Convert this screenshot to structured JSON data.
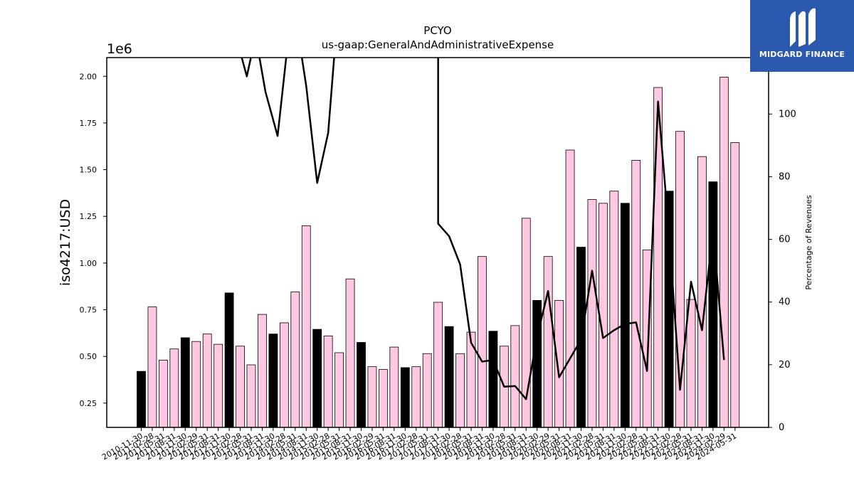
{
  "chart_data": {
    "type": "bar+line",
    "title": "PCYO",
    "subtitle": "us-gaap:GeneralAndAdministrativeExpense",
    "ylabel": "iso4217:USD",
    "ylabel_right": "Percentage of Revenues",
    "y_offset_label": "1e6",
    "ylim": [
      0.12,
      2.1
    ],
    "ylim_right": [
      0,
      118
    ],
    "yticks": [
      0.25,
      0.5,
      0.75,
      1.0,
      1.25,
      1.5,
      1.75,
      2.0
    ],
    "yticks_labels": [
      "0.25",
      "0.50",
      "0.75",
      "1.00",
      "1.25",
      "1.50",
      "1.75",
      "2.00"
    ],
    "yticks_right": [
      0,
      20,
      40,
      60,
      80,
      100
    ],
    "grid": false,
    "categories": [
      "2010-11-30",
      "2011-02-28",
      "2011-05-31",
      "2011-08-31",
      "2011-11-30",
      "2012-02-29",
      "2012-05-31",
      "2012-08-31",
      "2012-11-30",
      "2013-02-28",
      "2013-05-31",
      "2013-08-31",
      "2013-11-30",
      "2014-02-28",
      "2014-05-31",
      "2014-08-31",
      "2014-11-30",
      "2015-02-28",
      "2015-05-31",
      "2015-08-31",
      "2015-11-30",
      "2016-02-29",
      "2016-05-31",
      "2016-08-31",
      "2016-11-30",
      "2017-02-28",
      "2017-05-31",
      "2017-08-31",
      "2017-11-30",
      "2018-02-28",
      "2018-05-31",
      "2018-08-31",
      "2018-11-30",
      "2019-02-28",
      "2019-05-31",
      "2019-08-31",
      "2019-11-30",
      "2020-02-29",
      "2020-05-31",
      "2020-08-31",
      "2020-11-30",
      "2021-02-28",
      "2021-05-31",
      "2021-08-31",
      "2021-11-30",
      "2022-02-28",
      "2022-05-31",
      "2022-08-31",
      "2022-11-30",
      "2023-02-28",
      "2023-05-31",
      "2023-08-31",
      "2023-11-30",
      "2024-02-29",
      "2024-05-31"
    ],
    "series": [
      {
        "kind": "bar",
        "values": [
          0.42,
          0.765,
          0.48,
          0.54,
          0.6,
          0.58,
          0.62,
          0.565,
          0.84,
          0.555,
          0.455,
          0.725,
          0.62,
          0.68,
          0.845,
          1.2,
          0.645,
          0.61,
          0.52,
          0.915,
          0.575,
          0.445,
          0.43,
          0.55,
          0.44,
          0.445,
          0.515,
          0.79,
          0.66,
          0.515,
          0.63,
          1.035,
          0.635,
          0.555,
          0.665,
          1.24,
          0.8,
          1.035,
          0.8,
          1.605,
          1.085,
          1.34,
          1.32,
          1.385,
          1.32,
          1.55,
          1.07,
          1.94,
          1.385,
          1.705,
          0.805,
          1.57,
          1.435,
          1.995,
          1.645
        ],
        "fiscal_year_end": [
          true,
          false,
          false,
          false,
          true,
          false,
          false,
          false,
          true,
          false,
          false,
          false,
          true,
          false,
          false,
          false,
          true,
          false,
          false,
          false,
          true,
          false,
          false,
          false,
          true,
          false,
          false,
          false,
          true,
          false,
          false,
          false,
          true,
          false,
          false,
          false,
          true,
          false,
          false,
          false,
          true,
          false,
          false,
          false,
          true,
          false,
          false,
          false,
          true,
          false,
          false,
          false,
          true,
          false,
          false
        ],
        "color_highlight": "#000000",
        "color_default": "#ffc8e2"
      },
      {
        "kind": "line",
        "axis": "right",
        "values": [
          null,
          null,
          null,
          null,
          null,
          null,
          null,
          null,
          null,
          null,
          null,
          null,
          null,
          null,
          null,
          null,
          null,
          null,
          null,
          null,
          null,
          null,
          null,
          null,
          null,
          null,
          null,
          null,
          null,
          null,
          null,
          null,
          null,
          null,
          null,
          null,
          null,
          null,
          null,
          null,
          null,
          null,
          null,
          null,
          null,
          null,
          null,
          null,
          null,
          null,
          null,
          null,
          null,
          null,
          null
        ],
        "points": [
          [
            8.6,
            125
          ],
          [
            9.6,
            112
          ],
          [
            10.4,
            125
          ],
          [
            11.3,
            107
          ],
          [
            12.4,
            93
          ],
          [
            13.4,
            125
          ],
          [
            14.3,
            125
          ],
          [
            15.0,
            109
          ],
          [
            16.0,
            78
          ],
          [
            17.0,
            94
          ],
          [
            17.7,
            125
          ],
          [
            27.0,
            125
          ],
          [
            27.0,
            65
          ],
          [
            28.0,
            61
          ],
          [
            29.0,
            52
          ],
          [
            30.0,
            27
          ],
          [
            31.0,
            21
          ],
          [
            32.0,
            21.5
          ],
          [
            33.0,
            13
          ],
          [
            34.0,
            13.2
          ],
          [
            35.0,
            9
          ],
          [
            36.0,
            29
          ],
          [
            37.0,
            43.5
          ],
          [
            38.0,
            16
          ],
          [
            39.0,
            22
          ],
          [
            40.0,
            28
          ],
          [
            41.0,
            50
          ],
          [
            42.0,
            28.5
          ],
          [
            43.0,
            31
          ],
          [
            44.0,
            33
          ],
          [
            45.0,
            33.5
          ],
          [
            46.0,
            18
          ],
          [
            47.0,
            104
          ],
          [
            48.0,
            62
          ],
          [
            49.0,
            12
          ],
          [
            50.0,
            46.5
          ],
          [
            51.0,
            31
          ],
          [
            52.0,
            63
          ],
          [
            53.0,
            21.5
          ]
        ],
        "color": "#000000"
      }
    ]
  },
  "logo": {
    "brand": "MIDGARD FINANCE"
  }
}
